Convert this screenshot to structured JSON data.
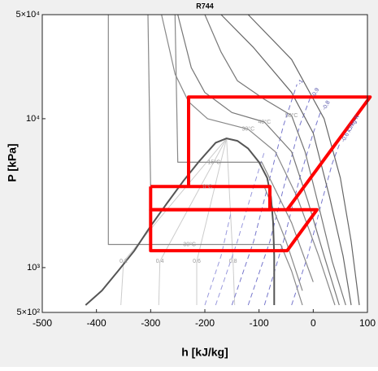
{
  "chart_data": {
    "type": "line",
    "title": "R744",
    "x_label": "h [kJ/kg]",
    "y_label": "P [kPa]",
    "xlim": [
      -500,
      100
    ],
    "xticks": [
      -500,
      -400,
      -300,
      -200,
      -100,
      0,
      100
    ],
    "ylim": [
      500,
      50000
    ],
    "log_y": true,
    "yticks": [
      {
        "value": 500,
        "label": "5×10²"
      },
      {
        "value": 1000,
        "label": "10³"
      },
      {
        "value": 10000,
        "label": "10⁴"
      },
      {
        "value": 50000,
        "label": "5×10⁴"
      }
    ],
    "grid": false,
    "series": [
      {
        "label": "0.2",
        "color": "#cccccc",
        "width": 1,
        "x": [
          -355,
          -350,
          -160
        ],
        "values": [
          560,
          1100,
          7380
        ]
      },
      {
        "label": "0.4",
        "color": "#cccccc",
        "width": 1,
        "x": [
          -285,
          -283,
          -160
        ],
        "values": [
          560,
          1100,
          7380
        ]
      },
      {
        "label": "0.6",
        "color": "#cccccc",
        "width": 1,
        "x": [
          -215,
          -215,
          -160
        ],
        "values": [
          560,
          1100,
          7380
        ]
      },
      {
        "label": "0.8",
        "color": "#cccccc",
        "width": 1,
        "x": [
          -145,
          -148,
          -160
        ],
        "values": [
          560,
          1100,
          7380
        ]
      },
      {
        "label": "-1",
        "color": "#7777cc",
        "width": 1,
        "dash": true,
        "x": [
          -150,
          -110,
          -80,
          -55,
          -30
        ],
        "values": [
          560,
          1500,
          4000,
          9000,
          17000
        ]
      },
      {
        "label": "-0.9",
        "color": "#7777cc",
        "width": 1,
        "dash": true,
        "x": [
          -120,
          -80,
          -50,
          -25,
          -5
        ],
        "values": [
          560,
          1500,
          4000,
          9000,
          14000
        ]
      },
      {
        "label": "-0.8",
        "color": "#7777cc",
        "width": 1,
        "dash": true,
        "x": [
          -90,
          -55,
          -25,
          0,
          15
        ],
        "values": [
          560,
          1500,
          4000,
          8000,
          11500
        ]
      },
      {
        "label": "-0.6 kJ/kg-K",
        "color": "#7777cc",
        "width": 1,
        "dash": true,
        "x": [
          -40,
          -10,
          15,
          35,
          50
        ],
        "values": [
          560,
          1200,
          2700,
          5000,
          7000
        ]
      },
      {
        "color": "#9999dd",
        "width": 1,
        "dash": true,
        "x": [
          -180,
          -140,
          -110,
          -90
        ],
        "values": [
          560,
          1500,
          3500,
          6000
        ]
      },
      {
        "color": "#9999dd",
        "width": 1,
        "dash": true,
        "x": [
          -200,
          -170,
          -150
        ],
        "values": [
          560,
          1200,
          2500
        ]
      },
      {
        "label": "-30°C",
        "color": "#888888",
        "width": 1.2,
        "x": [
          -378,
          -378,
          -300,
          -230,
          -60,
          -40,
          -20
        ],
        "values": [
          50000,
          1430,
          1430,
          1430,
          1430,
          950,
          560
        ]
      },
      {
        "label": "0°C",
        "color": "#888888",
        "width": 1.2,
        "x": [
          -305,
          -300,
          -250,
          -195,
          -90,
          -50,
          -20
        ],
        "values": [
          50000,
          3480,
          3480,
          3480,
          3480,
          1500,
          700
        ]
      },
      {
        "label": "15°C",
        "color": "#888888",
        "width": 1.2,
        "x": [
          -255,
          -250,
          -210,
          -183,
          -95,
          -40,
          0
        ],
        "values": [
          50000,
          5100,
          5100,
          5100,
          5100,
          2000,
          800
        ]
      },
      {
        "label": "30°C",
        "color": "#888888",
        "width": 1.2,
        "x": [
          -280,
          -255,
          -230,
          -195,
          -120,
          -70,
          -30,
          10,
          40
        ],
        "values": [
          50000,
          20000,
          13000,
          10000,
          8500,
          6000,
          3000,
          1200,
          560
        ]
      },
      {
        "label": "40°C",
        "color": "#777777",
        "width": 1.2,
        "x": [
          -250,
          -225,
          -200,
          -150,
          -90,
          -40,
          -10,
          20,
          48
        ],
        "values": [
          50000,
          22000,
          15000,
          11000,
          9500,
          6000,
          2800,
          1200,
          560
        ]
      },
      {
        "label": "50°C",
        "color": "#777777",
        "width": 1.2,
        "x": [
          -200,
          -170,
          -140,
          -90,
          -40,
          -15,
          10,
          35,
          60
        ],
        "values": [
          50000,
          28000,
          18000,
          13500,
          10500,
          6000,
          2600,
          1100,
          560
        ]
      },
      {
        "color": "#666666",
        "width": 1.2,
        "x": [
          -170,
          -110,
          -40,
          0,
          30,
          55,
          70
        ],
        "values": [
          50000,
          30000,
          15000,
          8000,
          3000,
          1200,
          560
        ]
      },
      {
        "color": "#666666",
        "width": 1.2,
        "x": [
          -120,
          -40,
          20,
          50,
          70,
          85
        ],
        "values": [
          50000,
          25000,
          10000,
          4000,
          1500,
          560
        ]
      },
      {
        "color": "#555555",
        "width": 2,
        "x": [
          -420,
          -390,
          -360,
          -330,
          -300,
          -270,
          -240,
          -210,
          -180,
          -160,
          -140,
          -120,
          -100,
          -85,
          -78,
          -74,
          -72,
          -72
        ],
        "values": [
          560,
          700,
          950,
          1300,
          1900,
          2700,
          3800,
          5200,
          6900,
          7380,
          7100,
          6300,
          5100,
          4000,
          3000,
          2000,
          1200,
          560
        ]
      },
      {
        "color": "#ff0000",
        "width": 4,
        "x": [
          -300,
          -80,
          -80,
          -300,
          -300
        ],
        "values": [
          3500,
          3500,
          2450,
          2450,
          3500
        ]
      },
      {
        "color": "#ff0000",
        "width": 4,
        "x": [
          -230,
          -230,
          105,
          -48
        ],
        "values": [
          3500,
          14000,
          14000,
          2450
        ]
      },
      {
        "color": "#ff0000",
        "width": 4,
        "x": [
          -300,
          7,
          -48,
          -300,
          -300
        ],
        "values": [
          2450,
          2450,
          1300,
          1300,
          2450
        ]
      }
    ]
  }
}
